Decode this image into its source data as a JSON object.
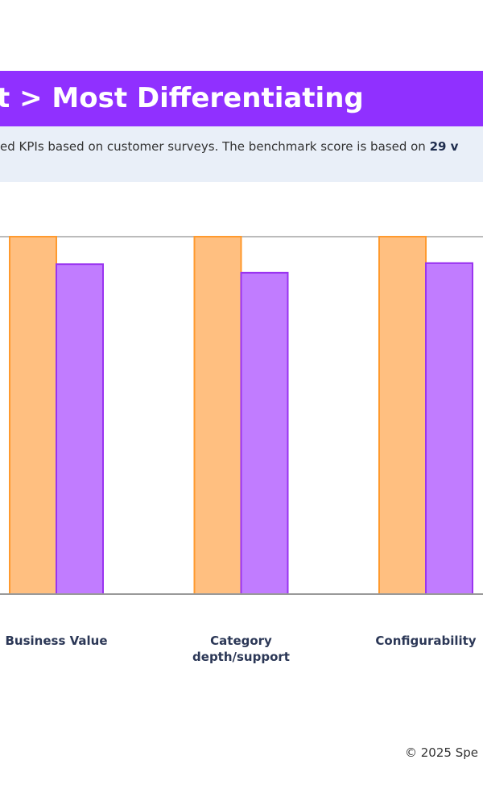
{
  "header": {
    "title": "t > Most Differentiating"
  },
  "subtitle": {
    "text": "ed KPIs based on customer surveys. The benchmark score is based on ",
    "bold": "29 v"
  },
  "chart_data": {
    "type": "bar",
    "categories": [
      "Business Value",
      "Category depth/support",
      "Configurability"
    ],
    "series": [
      {
        "color": "#ffbf80",
        "stroke": "#ff9a2e",
        "values": [
          100,
          100,
          100
        ]
      },
      {
        "color": "#c17cff",
        "stroke": "#9a34f0",
        "values": [
          92.3,
          89.9,
          92.6
        ]
      }
    ],
    "ylim": [
      0,
      100
    ]
  },
  "footer": {
    "text": "© 2025 Spe"
  }
}
